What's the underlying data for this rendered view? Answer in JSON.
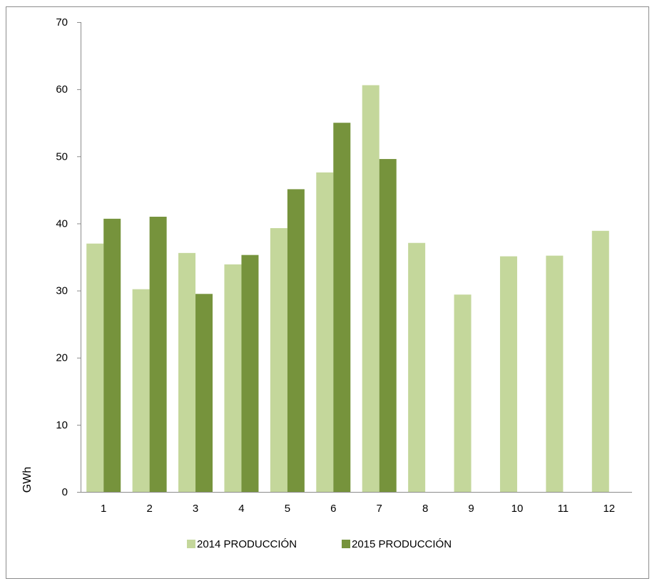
{
  "chart_data": {
    "type": "bar",
    "categories": [
      "1",
      "2",
      "3",
      "4",
      "5",
      "6",
      "7",
      "8",
      "9",
      "10",
      "11",
      "12"
    ],
    "series": [
      {
        "name": "2014 PRODUCCIÓN",
        "color": "#c4d79b",
        "values": [
          37.0,
          30.2,
          35.6,
          33.9,
          39.3,
          47.6,
          60.6,
          37.1,
          29.4,
          35.1,
          35.2,
          38.9
        ]
      },
      {
        "name": "2015 PRODUCCIÓN",
        "color": "#76933c",
        "values": [
          40.7,
          41.0,
          29.5,
          35.3,
          45.1,
          55.0,
          49.6,
          null,
          null,
          null,
          null,
          null
        ]
      }
    ],
    "xlabel": "",
    "ylabel": "GWh",
    "ylim": [
      0,
      70
    ],
    "yticks": [
      0,
      10,
      20,
      30,
      40,
      50,
      60,
      70
    ],
    "grid": false,
    "legend_position": "bottom"
  }
}
